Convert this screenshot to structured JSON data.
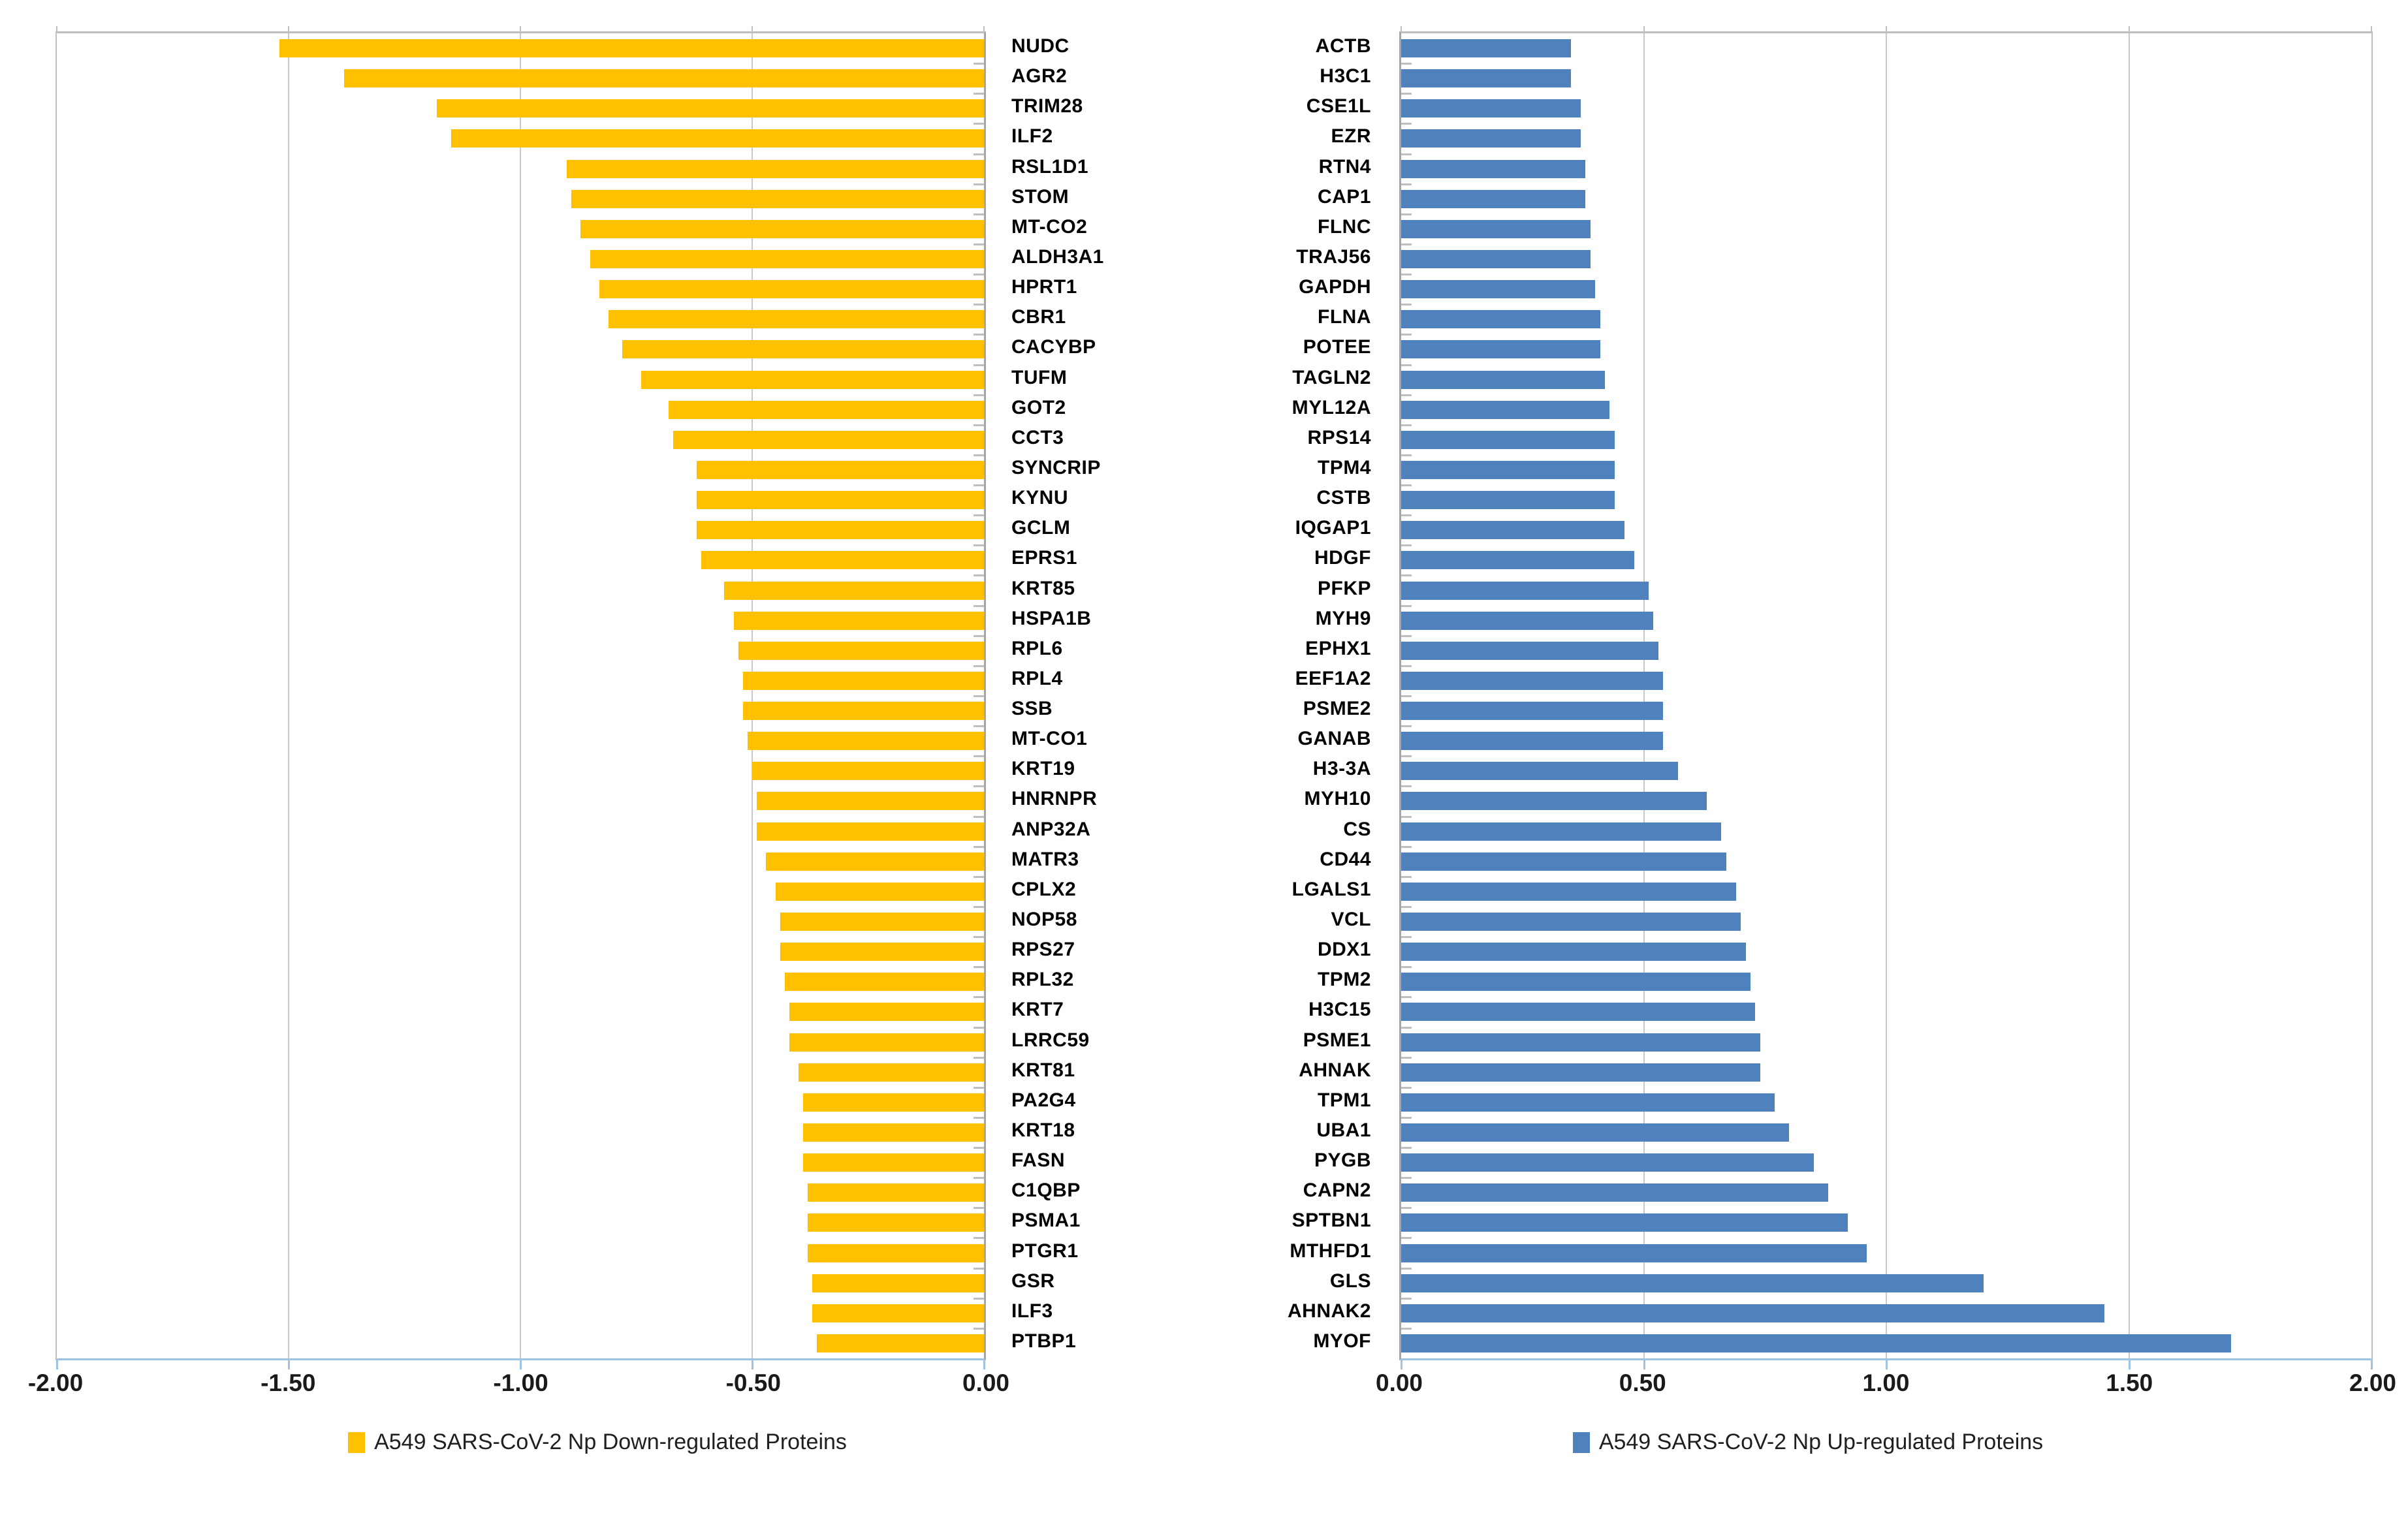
{
  "page": {
    "background": "#ffffff"
  },
  "chart_data": [
    {
      "type": "bar",
      "orientation": "horizontal",
      "side": "left",
      "legend": "A549 SARS-CoV-2 Np Down-regulated Proteins",
      "bar_color": "#FFC000",
      "xlim": [
        -2.0,
        0.0
      ],
      "x_ticks": [
        {
          "value": -2.0,
          "label": "-2.00"
        },
        {
          "value": -1.5,
          "label": "-1.50"
        },
        {
          "value": -1.0,
          "label": "-1.00"
        },
        {
          "value": -0.5,
          "label": "-0.50"
        },
        {
          "value": 0.0,
          "label": "0.00"
        }
      ],
      "grid": true,
      "legend_position": "bottom",
      "categories": [
        "NUDC",
        "AGR2",
        "TRIM28",
        "ILF2",
        "RSL1D1",
        "STOM",
        "MT-CO2",
        "ALDH3A1",
        "HPRT1",
        "CBR1",
        "CACYBP",
        "TUFM",
        "GOT2",
        "CCT3",
        "SYNCRIP",
        "KYNU",
        "GCLM",
        "EPRS1",
        "KRT85",
        "HSPA1B",
        "RPL6",
        "RPL4",
        "SSB",
        "MT-CO1",
        "KRT19",
        "HNRNPR",
        "ANP32A",
        "MATR3",
        "CPLX2",
        "NOP58",
        "RPS27",
        "RPL32",
        "KRT7",
        "LRRC59",
        "KRT81",
        "PA2G4",
        "KRT18",
        "FASN",
        "C1QBP",
        "PSMA1",
        "PTGR1",
        "GSR",
        "ILF3",
        "PTBP1"
      ],
      "values": [
        -1.52,
        -1.38,
        -1.18,
        -1.15,
        -0.9,
        -0.89,
        -0.87,
        -0.85,
        -0.83,
        -0.81,
        -0.78,
        -0.74,
        -0.68,
        -0.67,
        -0.62,
        -0.62,
        -0.62,
        -0.61,
        -0.56,
        -0.54,
        -0.53,
        -0.52,
        -0.52,
        -0.51,
        -0.5,
        -0.49,
        -0.49,
        -0.47,
        -0.45,
        -0.44,
        -0.44,
        -0.43,
        -0.42,
        -0.42,
        -0.4,
        -0.39,
        -0.39,
        -0.39,
        -0.38,
        -0.38,
        -0.38,
        -0.37,
        -0.37,
        -0.36
      ]
    },
    {
      "type": "bar",
      "orientation": "horizontal",
      "side": "right",
      "legend": "A549 SARS-CoV-2 Np Up-regulated Proteins",
      "bar_color": "#4F81BD",
      "xlim": [
        0.0,
        2.0
      ],
      "x_ticks": [
        {
          "value": 0.0,
          "label": "0.00"
        },
        {
          "value": 0.5,
          "label": "0.50"
        },
        {
          "value": 1.0,
          "label": "1.00"
        },
        {
          "value": 1.5,
          "label": "1.50"
        },
        {
          "value": 2.0,
          "label": "2.00"
        }
      ],
      "grid": true,
      "legend_position": "bottom",
      "categories": [
        "ACTB",
        "H3C1",
        "CSE1L",
        "EZR",
        "RTN4",
        "CAP1",
        "FLNC",
        "TRAJ56",
        "GAPDH",
        "FLNA",
        "POTEE",
        "TAGLN2",
        "MYL12A",
        "RPS14",
        "TPM4",
        "CSTB",
        "IQGAP1",
        "HDGF",
        "PFKP",
        "MYH9",
        "EPHX1",
        "EEF1A2",
        "PSME2",
        "GANAB",
        "H3-3A",
        "MYH10",
        "CS",
        "CD44",
        "LGALS1",
        "VCL",
        "DDX1",
        "TPM2",
        "H3C15",
        "PSME1",
        "AHNAK",
        "TPM1",
        "UBA1",
        "PYGB",
        "CAPN2",
        "SPTBN1",
        "MTHFD1",
        "GLS",
        "AHNAK2",
        "MYOF"
      ],
      "values": [
        0.35,
        0.35,
        0.37,
        0.37,
        0.38,
        0.38,
        0.39,
        0.39,
        0.4,
        0.41,
        0.41,
        0.42,
        0.43,
        0.44,
        0.44,
        0.44,
        0.46,
        0.48,
        0.51,
        0.52,
        0.53,
        0.54,
        0.54,
        0.54,
        0.57,
        0.63,
        0.66,
        0.67,
        0.69,
        0.7,
        0.71,
        0.72,
        0.73,
        0.74,
        0.74,
        0.77,
        0.8,
        0.85,
        0.88,
        0.92,
        0.96,
        1.2,
        1.45,
        1.71
      ]
    }
  ]
}
